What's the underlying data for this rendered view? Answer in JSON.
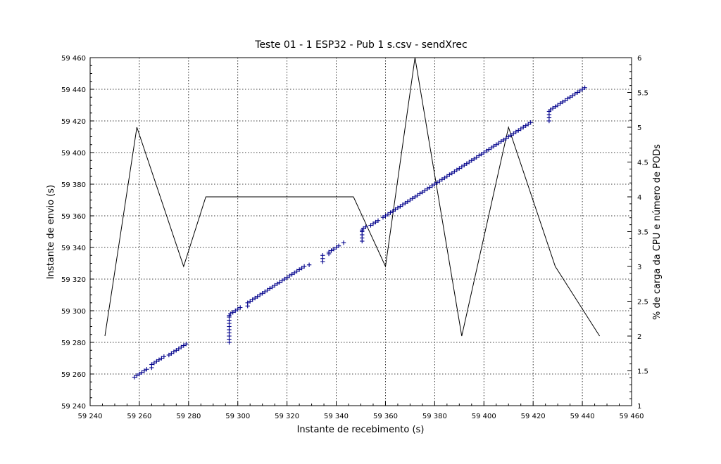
{
  "chart_data": {
    "type": "scatter",
    "title": "Teste 01 - 1 ESP32 - Pub 1 s.csv - sendXrec",
    "xlabel": "Instante de recebimento (s)",
    "ylabel": "Instante de envio (s)",
    "y2label": "% de carga da CPU  e número de PODs",
    "xlim": [
      59240,
      59460
    ],
    "ylim": [
      59240,
      59460
    ],
    "y2lim": [
      1,
      6
    ],
    "x_ticks": [
      "59 240",
      "59 260",
      "59 280",
      "59 300",
      "59 320",
      "59 340",
      "59 360",
      "59 380",
      "59 400",
      "59 420",
      "59 440",
      "59 460"
    ],
    "y_ticks": [
      "59 240",
      "59 260",
      "59 280",
      "59 300",
      "59 320",
      "59 340",
      "59 360",
      "59 380",
      "59 400",
      "59 420",
      "59 440",
      "59 460"
    ],
    "y2_ticks": [
      "1",
      "1.5",
      "2",
      "2.5",
      "3",
      "3.5",
      "4",
      "4.5",
      "5",
      "5.5",
      "6"
    ],
    "grid": true,
    "series": [
      {
        "color": "#00008b",
        "marker": "+",
        "x": [
          59258,
          59259,
          59260,
          59261,
          59262,
          59263,
          59265,
          59265,
          59266,
          59267,
          59268,
          59269,
          59270,
          59272,
          59273,
          59274,
          59275,
          59276,
          59277,
          59278,
          59279,
          59296.5,
          59296.5,
          59296.5,
          59296.5,
          59296.5,
          59296.5,
          59296.5,
          59296.5,
          59296.5,
          59296.5,
          59297,
          59298,
          59299,
          59300,
          59301,
          59304,
          59304,
          59305,
          59306,
          59307,
          59308,
          59309,
          59310,
          59311,
          59312,
          59313,
          59314,
          59315,
          59316,
          59317,
          59318,
          59319,
          59320,
          59321,
          59322,
          59323,
          59324,
          59325,
          59326,
          59327,
          59329,
          59334.5,
          59334.5,
          59334.5,
          59337,
          59337,
          59338,
          59339,
          59340,
          59341,
          59343,
          59350.5,
          59350.5,
          59350.5,
          59350.5,
          59350.5,
          59351,
          59352,
          59354,
          59355,
          59356,
          59357,
          59359,
          59360,
          59361,
          59362,
          59363,
          59364,
          59365,
          59366,
          59367,
          59368,
          59369,
          59370,
          59371,
          59372,
          59373,
          59374,
          59375,
          59376,
          59377,
          59378,
          59379,
          59380,
          59381,
          59382,
          59383,
          59384,
          59385,
          59386,
          59387,
          59388,
          59389,
          59390,
          59391,
          59392,
          59393,
          59394,
          59395,
          59396,
          59397,
          59398,
          59399,
          59400,
          59401,
          59402,
          59403,
          59404,
          59405,
          59406,
          59407,
          59408,
          59409,
          59410,
          59411,
          59412,
          59413,
          59414,
          59415,
          59416,
          59417,
          59418,
          59419,
          59426.5,
          59426.5,
          59426.5,
          59426.5,
          59427,
          59428,
          59429,
          59430,
          59431,
          59432,
          59433,
          59434,
          59435,
          59436,
          59437,
          59438,
          59439,
          59440,
          59441
        ],
        "y": [
          59258,
          59259,
          59260,
          59261,
          59262,
          59263,
          59264,
          59266,
          59267,
          59268,
          59269,
          59270,
          59271,
          59272,
          59273,
          59274,
          59275,
          59276,
          59277,
          59278,
          59279,
          59280,
          59282,
          59284,
          59286,
          59288,
          59290,
          59292,
          59294,
          59296,
          59297,
          59298,
          59299,
          59300,
          59301,
          59302,
          59303,
          59305,
          59306,
          59307,
          59308,
          59309,
          59310,
          59311,
          59312,
          59313,
          59314,
          59315,
          59316,
          59317,
          59318,
          59319,
          59320,
          59321,
          59322,
          59323,
          59324,
          59325,
          59326,
          59327,
          59328,
          59329,
          59331,
          59333,
          59335,
          59336,
          59337,
          59338,
          59339,
          59340,
          59341,
          59343,
          59344,
          59346,
          59348,
          59350,
          59351,
          59352,
          59353,
          59354,
          59355,
          59356,
          59357,
          59359,
          59360,
          59361,
          59362,
          59363,
          59364,
          59365,
          59366,
          59367,
          59368,
          59369,
          59370,
          59371,
          59372,
          59373,
          59374,
          59375,
          59376,
          59377,
          59378,
          59379,
          59380,
          59381,
          59382,
          59383,
          59384,
          59385,
          59386,
          59387,
          59388,
          59389,
          59390,
          59391,
          59392,
          59393,
          59394,
          59395,
          59396,
          59397,
          59398,
          59399,
          59400,
          59401,
          59402,
          59403,
          59404,
          59405,
          59406,
          59407,
          59408,
          59409,
          59410,
          59411,
          59412,
          59413,
          59414,
          59415,
          59416,
          59417,
          59418,
          59419,
          59420,
          59422,
          59424,
          59426,
          59427,
          59428,
          59429,
          59430,
          59431,
          59432,
          59433,
          59434,
          59435,
          59436,
          59437,
          59438,
          59439,
          59440,
          59441
        ]
      },
      {
        "color": "#000000",
        "axis": "right",
        "x": [
          59246,
          59259,
          59278,
          59287,
          59347,
          59360,
          59372,
          59391,
          59410,
          59429,
          59447
        ],
        "y": [
          2,
          5,
          3,
          4,
          4,
          3,
          6,
          2,
          5,
          3,
          2
        ]
      }
    ]
  }
}
